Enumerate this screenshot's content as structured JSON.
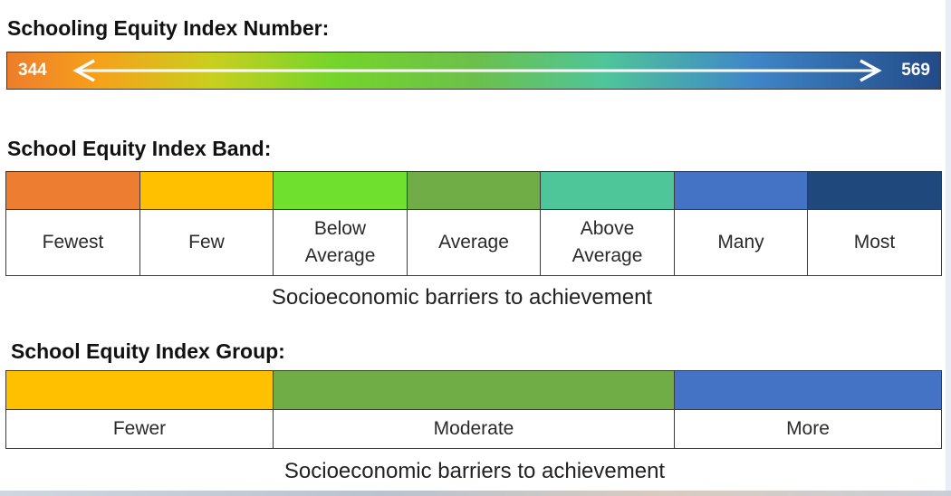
{
  "number_section": {
    "heading": "Schooling Equity Index Number:",
    "min_label": "344",
    "max_label": "569",
    "gradient_colors": [
      "#ee7d2b",
      "#f6a21a",
      "#c9cf1e",
      "#74d52a",
      "#6cc04a",
      "#4fc59a",
      "#3f86c8",
      "#224a87"
    ]
  },
  "band_section": {
    "heading": "School Equity Index Band:",
    "bands": [
      {
        "label": "Fewest",
        "color": "#ed7d31"
      },
      {
        "label": "Few",
        "color": "#ffc000"
      },
      {
        "label": "Below\nAverage",
        "color": "#70e02f"
      },
      {
        "label": "Average",
        "color": "#70ad47"
      },
      {
        "label": "Above\nAverage",
        "color": "#4fc699"
      },
      {
        "label": "Many",
        "color": "#4472c4"
      },
      {
        "label": "Most",
        "color": "#1f497d"
      }
    ],
    "caption": "Socioeconomic barriers to achievement"
  },
  "group_section": {
    "heading": "School Equity Index Group:",
    "groups": [
      {
        "label": "Fewer",
        "color": "#ffc000"
      },
      {
        "label": "Moderate",
        "color": "#70ad47"
      },
      {
        "label": "More",
        "color": "#4472c4"
      }
    ],
    "caption": "Socioeconomic barriers to achievement"
  }
}
